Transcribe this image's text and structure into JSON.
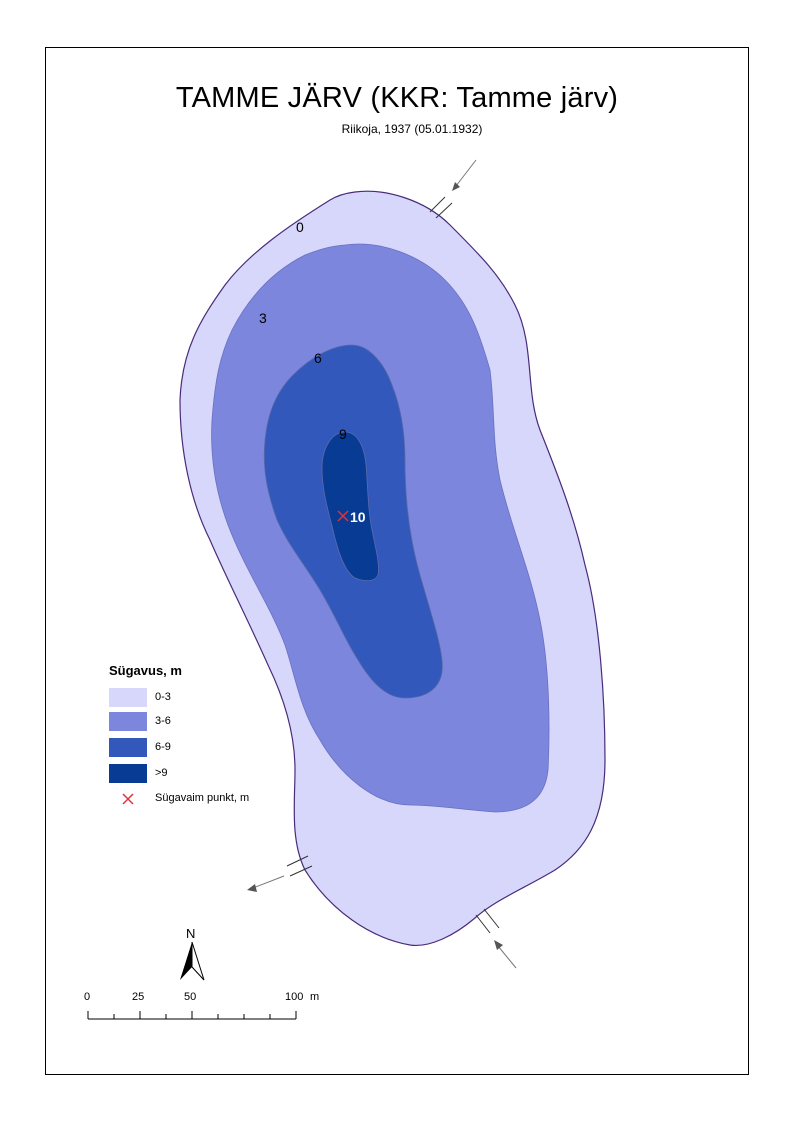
{
  "title": "TAMME JÄRV (KKR: Tamme järv)",
  "subtitle": "Riikoja, 1937 (05.01.1932)",
  "contour_labels": [
    "0",
    "3",
    "6",
    "9"
  ],
  "deepest_point": {
    "value": "10",
    "marker_color": "#e0303a"
  },
  "depth_zones": [
    {
      "range": "0-3",
      "color": "#d6d7fa"
    },
    {
      "range": "3-6",
      "color": "#7c86dc"
    },
    {
      "range": "6-9",
      "color": "#3358bc"
    },
    {
      "range": ">9",
      "color": "#073b94"
    }
  ],
  "legend": {
    "title": "Sügavus, m",
    "items": [
      "0-3",
      "3-6",
      "6-9",
      ">9"
    ],
    "deepest_label": "Sügavaim punkt, m"
  },
  "north_arrow": {
    "label": "N"
  },
  "scale_bar": {
    "ticks": [
      "0",
      "25",
      "50",
      "100"
    ],
    "unit": "m"
  }
}
